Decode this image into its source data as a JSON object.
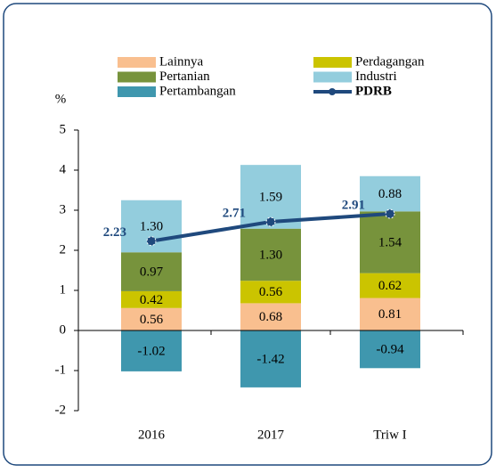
{
  "chart_data": {
    "type": "bar",
    "stacked": true,
    "categories": [
      "2016",
      "2017",
      "Triw I"
    ],
    "y_label": "%",
    "ylim": [
      -2,
      5
    ],
    "yticks": [
      -2,
      -1,
      0,
      1,
      2,
      3,
      4,
      5
    ],
    "series": [
      {
        "name": "Lainnya",
        "color": "#f9bf8f",
        "values": [
          0.56,
          0.68,
          0.81
        ],
        "value_labels": [
          "0.56",
          "0.68",
          "0.81"
        ]
      },
      {
        "name": "Perdagangan",
        "color": "#cbc400",
        "values": [
          0.42,
          0.56,
          0.62
        ],
        "value_labels": [
          "0.42",
          "0.56",
          "0.62"
        ]
      },
      {
        "name": "Pertanian",
        "color": "#77933c",
        "values": [
          0.97,
          1.3,
          1.54
        ],
        "value_labels": [
          "0.97",
          "1.30",
          "1.54"
        ]
      },
      {
        "name": "Industri",
        "color": "#93cddd",
        "values": [
          1.3,
          1.59,
          0.88
        ],
        "value_labels": [
          "1.30",
          "1.59",
          "0.88"
        ]
      },
      {
        "name": "Pertambangan",
        "color": "#3f97ae",
        "values": [
          -1.02,
          -1.42,
          -0.94
        ],
        "value_labels": [
          "-1.02",
          "-1.42",
          "-0.94"
        ]
      },
      {
        "name": "PDRB",
        "type": "line",
        "color": "#1f497d",
        "values": [
          2.23,
          2.71,
          2.91
        ],
        "value_labels": [
          "2.23",
          "2.71",
          "2.91"
        ]
      }
    ]
  }
}
